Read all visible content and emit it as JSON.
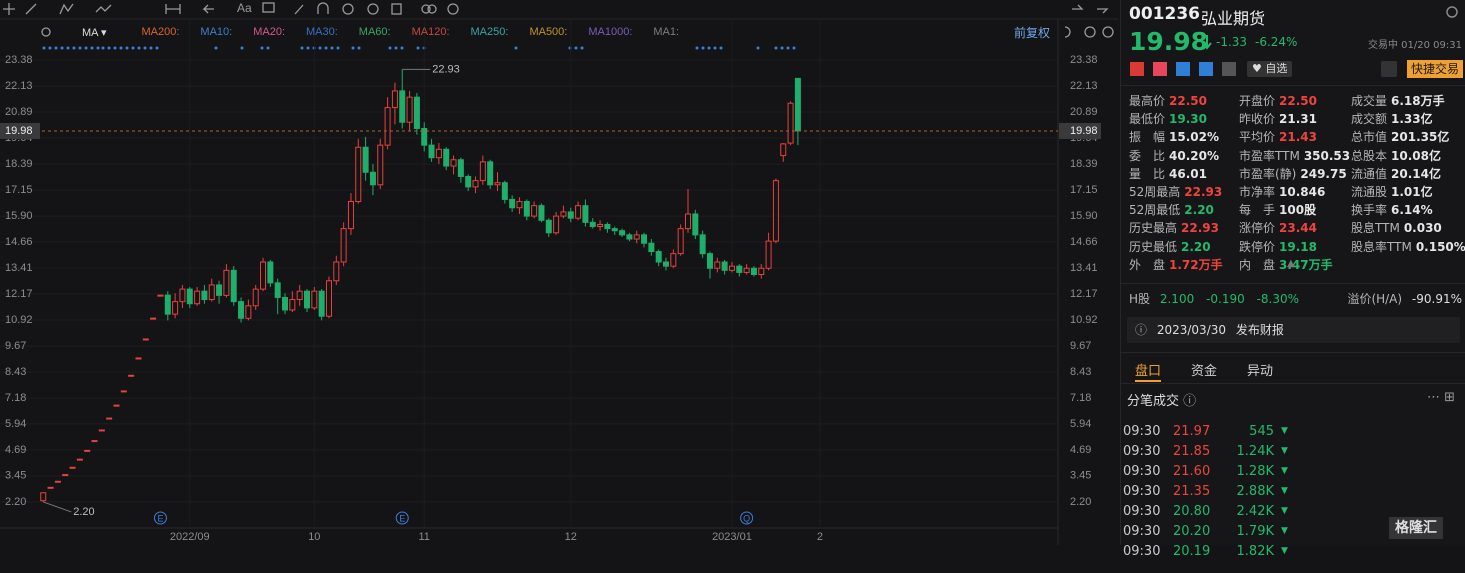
{
  "toolbar": {
    "font_button": "Aa"
  },
  "indicator_bar": {
    "indicator": "MA",
    "ma_labels": [
      {
        "text": "MA200:",
        "color": "#d8652e"
      },
      {
        "text": "MA10:",
        "color": "#3b82c8"
      },
      {
        "text": "MA20:",
        "color": "#d35a8f"
      },
      {
        "text": "MA30:",
        "color": "#3a6fc0"
      },
      {
        "text": "MA60:",
        "color": "#3ea36a"
      },
      {
        "text": "MA120:",
        "color": "#c9473f"
      },
      {
        "text": "MA250:",
        "color": "#3fa3a3"
      },
      {
        "text": "MA500:",
        "color": "#c3902c"
      },
      {
        "text": "MA1000:",
        "color": "#7a5cb8"
      },
      {
        "text": "MA1:",
        "color": "#7d7d7d"
      }
    ],
    "adjust": "前复权"
  },
  "chart_data": {
    "type": "candlestick",
    "up_color": "#e8413e",
    "down_color": "#1fae6b",
    "grid": true,
    "xlim": [
      -5.9,
      138.5
    ],
    "ylim": [
      0.95,
      24.34
    ],
    "xticks": [
      {
        "value": 20,
        "label": "2022/09"
      },
      {
        "value": 37,
        "label": "10"
      },
      {
        "value": 52,
        "label": "11"
      },
      {
        "value": 72,
        "label": "12"
      },
      {
        "value": 94,
        "label": "2023/01"
      },
      {
        "value": 106,
        "label": "2"
      }
    ],
    "yticks": [
      23.38,
      22.13,
      20.89,
      19.64,
      18.39,
      17.15,
      {
        "value": 15.9,
        "label": "15.90"
      },
      14.66,
      13.41,
      12.17,
      10.92,
      9.67,
      8.43,
      7.18,
      5.94,
      4.69,
      3.45,
      {
        "value": 2.2,
        "label": "2.20"
      }
    ],
    "last_price": 19.98,
    "max_label": 22.93,
    "min_label": {
      "value": 2.2,
      "label": "2.20"
    },
    "events": [
      {
        "index": 16,
        "label": "E"
      },
      {
        "index": 49,
        "label": "E"
      },
      {
        "index": 96,
        "label": "Q"
      }
    ],
    "candles": [
      [
        2.26,
        2.64,
        2.2,
        2.64
      ],
      [
        2.9,
        2.9,
        2.9,
        2.9
      ],
      [
        3.19,
        3.19,
        3.19,
        3.19
      ],
      [
        3.51,
        3.51,
        3.51,
        3.51
      ],
      [
        3.86,
        3.86,
        3.86,
        3.86
      ],
      [
        4.25,
        4.25,
        4.25,
        4.25
      ],
      [
        4.67,
        4.67,
        4.67,
        4.67
      ],
      [
        5.14,
        5.14,
        5.14,
        5.14
      ],
      [
        5.65,
        5.65,
        5.65,
        5.65
      ],
      [
        6.22,
        6.22,
        6.22,
        6.22
      ],
      [
        6.84,
        6.84,
        6.84,
        6.84
      ],
      [
        7.52,
        7.52,
        7.52,
        7.52
      ],
      [
        8.27,
        8.27,
        8.27,
        8.27
      ],
      [
        9.1,
        9.1,
        9.1,
        9.1
      ],
      [
        10.01,
        10.01,
        10.01,
        10.01
      ],
      [
        11.01,
        11.01,
        11.01,
        11.01
      ],
      [
        12.11,
        12.11,
        12.11,
        12.11
      ],
      [
        12.11,
        11.2,
        10.9,
        12.3
      ],
      [
        11.2,
        11.8,
        11.0,
        12.2
      ],
      [
        11.8,
        12.4,
        11.5,
        12.6
      ],
      [
        12.4,
        11.7,
        11.5,
        12.5
      ],
      [
        11.7,
        12.3,
        11.6,
        12.5
      ],
      [
        12.3,
        11.9,
        11.7,
        12.6
      ],
      [
        11.9,
        12.6,
        11.8,
        12.9
      ],
      [
        12.6,
        12.1,
        11.7,
        12.8
      ],
      [
        12.1,
        13.3,
        12.0,
        13.6
      ],
      [
        13.3,
        11.8,
        11.6,
        13.5
      ],
      [
        11.8,
        11.0,
        10.8,
        12.0
      ],
      [
        11.0,
        11.6,
        10.9,
        11.9
      ],
      [
        11.6,
        12.4,
        11.4,
        12.6
      ],
      [
        12.4,
        13.7,
        12.3,
        13.9
      ],
      [
        13.7,
        12.7,
        12.5,
        13.8
      ],
      [
        12.7,
        12.0,
        11.2,
        12.9
      ],
      [
        12.0,
        11.4,
        11.2,
        12.2
      ],
      [
        11.4,
        11.9,
        11.3,
        12.3
      ],
      [
        11.9,
        12.3,
        11.6,
        12.6
      ],
      [
        12.3,
        11.5,
        11.3,
        12.4
      ],
      [
        11.5,
        12.3,
        11.4,
        12.5
      ],
      [
        12.3,
        11.1,
        10.9,
        12.4
      ],
      [
        11.1,
        12.8,
        11.0,
        13.0
      ],
      [
        12.8,
        13.7,
        12.6,
        14.0
      ],
      [
        13.7,
        15.3,
        13.5,
        15.6
      ],
      [
        15.3,
        16.6,
        15.0,
        17.0
      ],
      [
        16.6,
        19.2,
        16.5,
        19.6
      ],
      [
        19.2,
        18.0,
        17.6,
        19.7
      ],
      [
        18.0,
        17.4,
        16.9,
        18.4
      ],
      [
        17.4,
        19.3,
        17.2,
        19.6
      ],
      [
        19.3,
        21.1,
        19.1,
        21.6
      ],
      [
        21.1,
        21.9,
        20.3,
        22.3
      ],
      [
        21.9,
        20.4,
        20.1,
        22.93
      ],
      [
        20.4,
        21.6,
        20.0,
        21.9
      ],
      [
        21.6,
        20.1,
        19.8,
        21.8
      ],
      [
        20.1,
        19.3,
        19.0,
        20.4
      ],
      [
        19.3,
        18.7,
        18.5,
        19.6
      ],
      [
        18.7,
        19.1,
        18.4,
        19.4
      ],
      [
        19.1,
        18.3,
        18.1,
        19.2
      ],
      [
        18.3,
        18.6,
        17.9,
        18.8
      ],
      [
        18.6,
        17.8,
        17.5,
        18.7
      ],
      [
        17.8,
        17.3,
        17.1,
        17.9
      ],
      [
        17.3,
        17.6,
        17.0,
        17.8
      ],
      [
        17.6,
        18.5,
        17.4,
        18.8
      ],
      [
        18.5,
        17.4,
        17.2,
        18.6
      ],
      [
        17.4,
        17.5,
        17.1,
        18.0
      ],
      [
        17.5,
        16.7,
        16.5,
        17.6
      ],
      [
        16.7,
        16.3,
        16.1,
        16.9
      ],
      [
        16.3,
        16.6,
        16.0,
        16.8
      ],
      [
        16.6,
        15.9,
        15.7,
        16.7
      ],
      [
        15.9,
        16.4,
        15.8,
        16.6
      ],
      [
        16.4,
        15.7,
        15.6,
        16.5
      ],
      [
        15.7,
        15.1,
        14.9,
        15.8
      ],
      [
        15.1,
        15.9,
        15.0,
        16.1
      ],
      [
        15.9,
        16.1,
        15.8,
        16.4
      ],
      [
        16.1,
        15.8,
        15.6,
        16.3
      ],
      [
        15.8,
        16.4,
        15.7,
        16.6
      ],
      [
        16.4,
        15.6,
        15.4,
        16.7
      ],
      [
        15.6,
        15.4,
        15.3,
        15.8
      ],
      [
        15.4,
        15.5,
        15.2,
        15.7
      ],
      [
        15.5,
        15.3,
        15.1,
        15.6
      ],
      [
        15.3,
        15.2,
        15.0,
        15.4
      ],
      [
        15.2,
        15.0,
        14.9,
        15.3
      ],
      [
        15.0,
        14.8,
        14.7,
        15.1
      ],
      [
        14.8,
        15.0,
        14.6,
        15.2
      ],
      [
        15.0,
        14.6,
        14.4,
        15.1
      ],
      [
        14.6,
        14.2,
        14.0,
        14.8
      ],
      [
        14.2,
        13.7,
        13.5,
        14.3
      ],
      [
        13.7,
        13.5,
        13.3,
        13.9
      ],
      [
        13.5,
        14.1,
        13.4,
        14.3
      ],
      [
        14.1,
        15.3,
        14.0,
        15.5
      ],
      [
        15.3,
        16.0,
        15.1,
        17.2
      ],
      [
        16.0,
        15.0,
        14.8,
        16.2
      ],
      [
        15.0,
        14.1,
        13.9,
        15.2
      ],
      [
        14.1,
        13.4,
        12.9,
        14.2
      ],
      [
        13.4,
        13.7,
        13.2,
        13.9
      ],
      [
        13.7,
        13.3,
        13.1,
        13.8
      ],
      [
        13.3,
        13.5,
        13.2,
        13.7
      ],
      [
        13.5,
        13.2,
        13.0,
        13.6
      ],
      [
        13.2,
        13.4,
        13.1,
        13.6
      ],
      [
        13.4,
        13.1,
        13.0,
        13.5
      ],
      [
        13.1,
        13.4,
        12.9,
        13.6
      ],
      [
        13.4,
        14.7,
        13.3,
        15.1
      ],
      [
        14.7,
        17.6,
        14.6,
        17.7
      ],
      [
        18.8,
        19.36,
        18.5,
        19.4
      ],
      [
        19.4,
        21.31,
        19.3,
        21.4
      ],
      [
        22.5,
        19.98,
        19.3,
        22.5
      ]
    ]
  },
  "quote": {
    "code": "001236",
    "name": "弘业期货",
    "price": "19.98",
    "change": "-1.33",
    "change_pct": "-6.24%",
    "status": "交易中 01/20 09:31",
    "watchlist": "自选",
    "quick_trade": "快捷交易"
  },
  "stats": [
    [
      {
        "label": "最高价",
        "value": "22.50",
        "color": "#f0433d"
      },
      {
        "label": "开盘价",
        "value": "22.50",
        "color": "#f0433d"
      },
      {
        "label": "成交量",
        "value": "6.18万手",
        "color": "#e6e6e6"
      }
    ],
    [
      {
        "label": "最低价",
        "value": "19.30",
        "color": "#22b96b"
      },
      {
        "label": "昨收价",
        "value": "21.31",
        "color": "#e6e6e6"
      },
      {
        "label": "成交额",
        "value": "1.33亿",
        "color": "#e6e6e6"
      }
    ],
    [
      {
        "label": "振　幅",
        "value": "15.02%",
        "color": "#e6e6e6"
      },
      {
        "label": "平均价",
        "value": "21.43",
        "color": "#f0433d"
      },
      {
        "label": "总市值",
        "value": "201.35亿",
        "color": "#e6e6e6"
      }
    ],
    [
      {
        "label": "委　比",
        "value": "40.20%",
        "color": "#e6e6e6"
      },
      {
        "label": "市盈率TTM",
        "value": "350.53",
        "color": "#e6e6e6"
      },
      {
        "label": "总股本",
        "value": "10.08亿",
        "color": "#e6e6e6"
      }
    ],
    [
      {
        "label": "量　比",
        "value": "46.01",
        "color": "#e6e6e6"
      },
      {
        "label": "市盈率(静)",
        "value": "249.75",
        "color": "#e6e6e6"
      },
      {
        "label": "流通值",
        "value": "20.14亿",
        "color": "#e6e6e6"
      }
    ],
    [
      {
        "label": "52周最高",
        "value": "22.93",
        "color": "#f0433d"
      },
      {
        "label": "市净率",
        "value": "10.846",
        "color": "#e6e6e6"
      },
      {
        "label": "流通股",
        "value": "1.01亿",
        "color": "#e6e6e6"
      }
    ],
    [
      {
        "label": "52周最低",
        "value": "2.20",
        "color": "#22b96b"
      },
      {
        "label": "每　手",
        "value": "100股",
        "color": "#e6e6e6"
      },
      {
        "label": "换手率",
        "value": "6.14%",
        "color": "#e6e6e6"
      }
    ],
    [
      {
        "label": "历史最高",
        "value": "22.93",
        "color": "#f0433d"
      },
      {
        "label": "涨停价",
        "value": "23.44",
        "color": "#f0433d"
      },
      {
        "label": "股息TTM",
        "value": "0.030",
        "color": "#e6e6e6"
      }
    ],
    [
      {
        "label": "历史最低",
        "value": "2.20",
        "color": "#22b96b"
      },
      {
        "label": "跌停价",
        "value": "19.18",
        "color": "#22b96b"
      },
      {
        "label": "股息率TTM",
        "value": "0.150%",
        "color": "#e6e6e6"
      }
    ],
    [
      {
        "label": "外　盘",
        "value": "1.72万手",
        "color": "#f0433d"
      },
      {
        "label": "内　盘",
        "value": "3.47万手",
        "color": "#22b96b"
      }
    ]
  ],
  "hshare": {
    "label": "H股",
    "price": "2.100",
    "change": "-0.190",
    "change_pct": "-8.30%",
    "premium_label": "溢价(H/A)",
    "premium": "-90.91%"
  },
  "notice": {
    "date": "2023/03/30",
    "text": "发布财报"
  },
  "tabs": {
    "items": [
      "盘口",
      "资金",
      "异动"
    ],
    "active": 0
  },
  "trades": {
    "title": "分笔成交",
    "rows": [
      {
        "time": "09:30",
        "price": "21.97",
        "volume": "545",
        "color": "#f0433d"
      },
      {
        "time": "09:30",
        "price": "21.85",
        "volume": "1.24K",
        "color": "#f0433d"
      },
      {
        "time": "09:30",
        "price": "21.60",
        "volume": "1.28K",
        "color": "#f0433d"
      },
      {
        "time": "09:30",
        "price": "21.35",
        "volume": "2.88K",
        "color": "#f0433d"
      },
      {
        "time": "09:30",
        "price": "20.80",
        "volume": "2.42K",
        "color": "#22b96b"
      },
      {
        "time": "09:30",
        "price": "20.20",
        "volume": "1.79K",
        "color": "#22b96b"
      },
      {
        "time": "09:30",
        "price": "20.19",
        "volume": "1.82K",
        "color": "#22b96b"
      }
    ]
  },
  "watermark": "格隆汇"
}
